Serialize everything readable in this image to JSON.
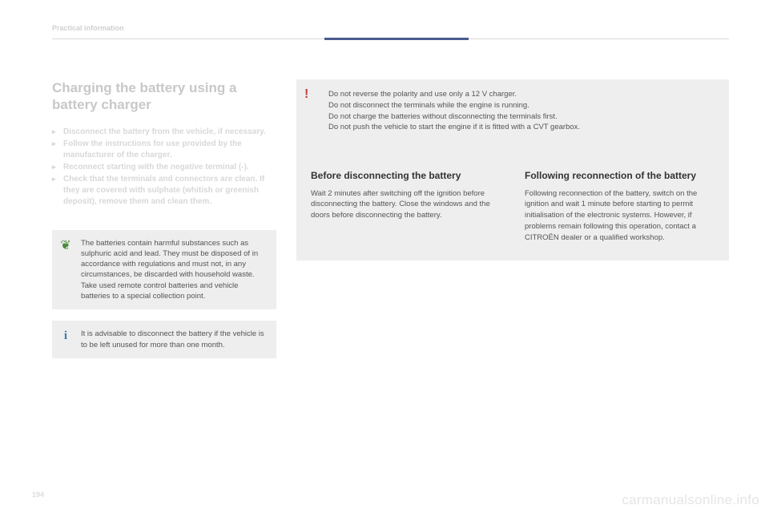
{
  "header": {
    "section_label": "Practical information"
  },
  "main": {
    "heading": "Charging the battery using a battery charger",
    "bullets": [
      "Disconnect the battery from the vehicle, if necessary.",
      "Follow the instructions for use provided by the manufacturer of the charger.",
      "Reconnect starting with the negative terminal (-).",
      "Check that the terminals and connectors are clean. If they are covered with sulphate (whitish or greenish deposit), remove them and clean them."
    ]
  },
  "eco_box": {
    "text": "The batteries contain harmful substances such as sulphuric acid and lead. They must be disposed of in accordance with regulations and must not, in any circumstances, be discarded with household waste.\nTake used remote control batteries and vehicle batteries to a special collection point."
  },
  "info_box": {
    "text": "It is advisable to disconnect the battery if the vehicle is to be left unused for more than one month."
  },
  "warning_box": {
    "lines": [
      "Do not reverse the polarity and use only a 12 V charger.",
      "Do not disconnect the terminals while the engine is running.",
      "Do not charge the batteries without disconnecting the terminals first.",
      "Do not push the vehicle to start the engine if it is fitted with a CVT gearbox."
    ]
  },
  "before_section": {
    "heading": "Before disconnecting the battery",
    "text": "Wait 2 minutes after switching off the ignition before disconnecting the battery. Close the windows and the doors before disconnecting the battery."
  },
  "following_section": {
    "heading": "Following reconnection of the battery",
    "text": "Following reconnection of the battery, switch on the ignition and wait 1 minute before starting to permit initialisation of the electronic systems. However, if problems remain following this operation, contact a CITROËN dealer or a qualified workshop."
  },
  "page_number": "194",
  "watermark": "carmanualsonline.info",
  "colors": {
    "accent": "#4a5b8f",
    "faded_text": "#d0d0d0",
    "box_bg": "#eeeeee",
    "body_text": "#555555",
    "tree": "#4a8a3a",
    "info_i": "#3a7aaa",
    "excl": "#c04040"
  }
}
